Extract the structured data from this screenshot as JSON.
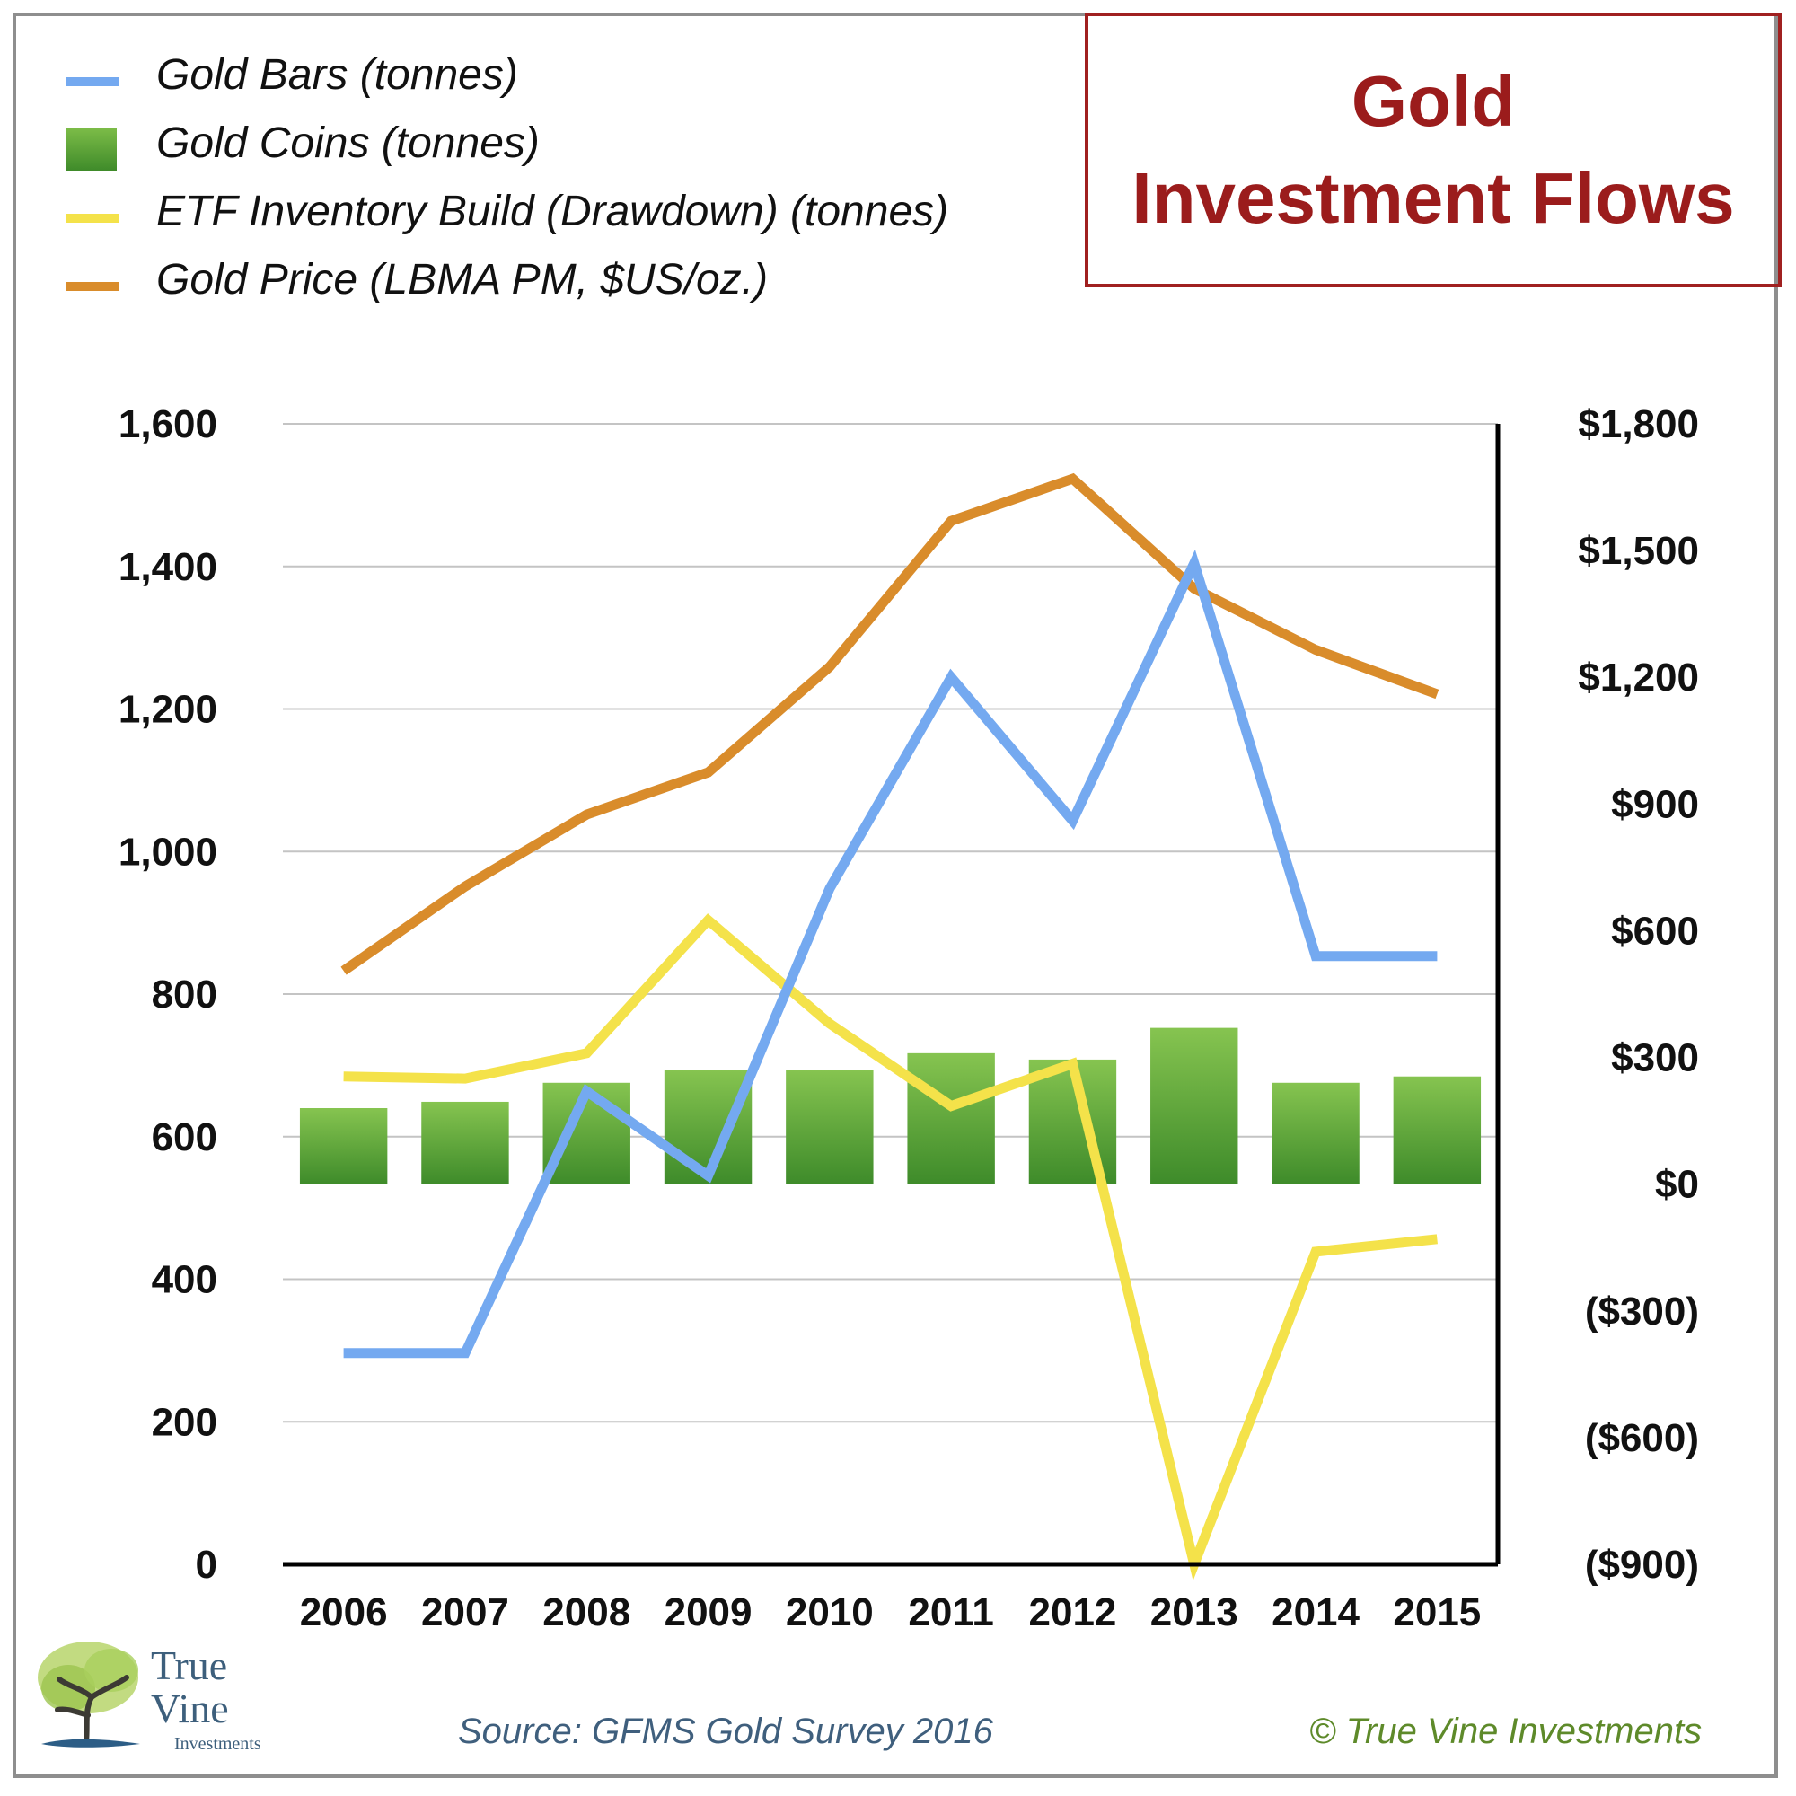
{
  "title": {
    "line1": "Gold",
    "line2": "Investment Flows"
  },
  "legend": [
    {
      "label": "Gold Bars (tonnes)",
      "color": "#74a9f0",
      "kind": "line"
    },
    {
      "label": "Gold Coins (tonnes)",
      "color": "#5aa33a",
      "kind": "bar"
    },
    {
      "label": "ETF Inventory Build (Drawdown) (tonnes)",
      "color": "#f4e24a",
      "kind": "line"
    },
    {
      "label": "Gold Price (LBMA PM, $US/oz.)",
      "color": "#d98c2b",
      "kind": "line"
    }
  ],
  "chart_data": {
    "type": "bar+line",
    "categories": [
      "2006",
      "2007",
      "2008",
      "2009",
      "2010",
      "2011",
      "2012",
      "2013",
      "2014",
      "2015"
    ],
    "y_left": {
      "min": 0,
      "max": 1600,
      "ticks": [
        0,
        200,
        400,
        600,
        800,
        1000,
        1200,
        1400,
        1600
      ],
      "tick_labels": [
        "0",
        "200",
        "400",
        "600",
        "800",
        "1,000",
        "1,200",
        "1,400",
        "1,600"
      ]
    },
    "y_right": {
      "min": -900,
      "max": 1800,
      "ticks": [
        -900,
        -600,
        -300,
        0,
        300,
        600,
        900,
        1200,
        1500,
        1800
      ],
      "tick_labels": [
        "($900)",
        "($600)",
        "($300)",
        "$0",
        "$300",
        "$600",
        "$900",
        "$1,200",
        "$1,500",
        "$1,800"
      ]
    },
    "series": [
      {
        "name": "Gold Bars (tonnes)",
        "kind": "line",
        "axis": "right",
        "color": "#74a9f0",
        "values": [
          -400,
          -400,
          220,
          20,
          700,
          1200,
          860,
          1470,
          540,
          540
        ]
      },
      {
        "name": "Gold Coins (tonnes)",
        "kind": "bar",
        "axis": "right",
        "color": "#5aa33a",
        "values": [
          180,
          195,
          240,
          270,
          270,
          310,
          295,
          370,
          240,
          255
        ]
      },
      {
        "name": "ETF Inventory Build (Drawdown) (tonnes)",
        "kind": "line",
        "axis": "right",
        "color": "#f4e24a",
        "values": [
          255,
          250,
          310,
          625,
          380,
          185,
          285,
          -900,
          -160,
          -130
        ]
      },
      {
        "name": "Gold Price (LBMA PM, $US/oz.)",
        "kind": "line",
        "axis": "right",
        "color": "#d98c2b",
        "values": [
          505,
          705,
          875,
          975,
          1225,
          1570,
          1670,
          1410,
          1265,
          1160
        ]
      }
    ],
    "grid": true,
    "legend_position": "top-left"
  },
  "footer": {
    "source": "Source: GFMS Gold Survey 2016",
    "copyright": "© True Vine Investments"
  },
  "logo": {
    "line1": "True",
    "line2": "Vine",
    "line3": "Investments"
  }
}
